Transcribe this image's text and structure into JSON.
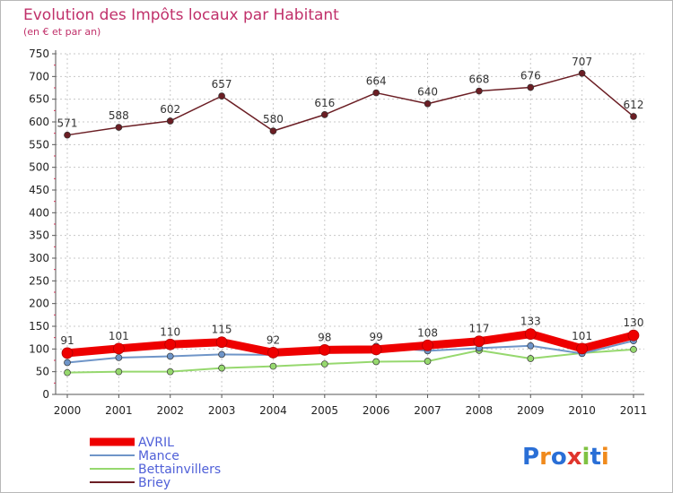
{
  "chart_data": {
    "type": "line",
    "title": "Evolution des Impôts locaux par Habitant",
    "subtitle": "(en € et par an)",
    "xlabel": "",
    "ylabel": "",
    "ylim": [
      0,
      750
    ],
    "yticks": [
      0,
      50,
      100,
      150,
      200,
      250,
      300,
      350,
      400,
      450,
      500,
      550,
      600,
      650,
      700,
      750
    ],
    "categories": [
      "2000",
      "2001",
      "2002",
      "2003",
      "2004",
      "2005",
      "2006",
      "2007",
      "2008",
      "2009",
      "2010",
      "2011"
    ],
    "legend_position": "bottom-left",
    "grid": true,
    "series": [
      {
        "name": "AVRIL",
        "color": "#ee0000",
        "values": [
          91,
          101,
          110,
          115,
          92,
          98,
          99,
          108,
          117,
          133,
          101,
          130
        ],
        "labels": true
      },
      {
        "name": "Mance",
        "color": "#6f95c8",
        "values": [
          70,
          81,
          84,
          88,
          87,
          95,
          106,
          96,
          102,
          107,
          90,
          118
        ],
        "labels": false
      },
      {
        "name": "Bettainvillers",
        "color": "#96d86e",
        "values": [
          48,
          50,
          50,
          58,
          62,
          67,
          72,
          73,
          97,
          79,
          91,
          99
        ],
        "labels": false
      },
      {
        "name": "Briey",
        "color": "#6b1e24",
        "values": [
          571,
          588,
          602,
          657,
          580,
          616,
          664,
          640,
          668,
          676,
          707,
          612
        ],
        "labels": true
      }
    ]
  },
  "watermark": {
    "text": "Proxiti"
  }
}
